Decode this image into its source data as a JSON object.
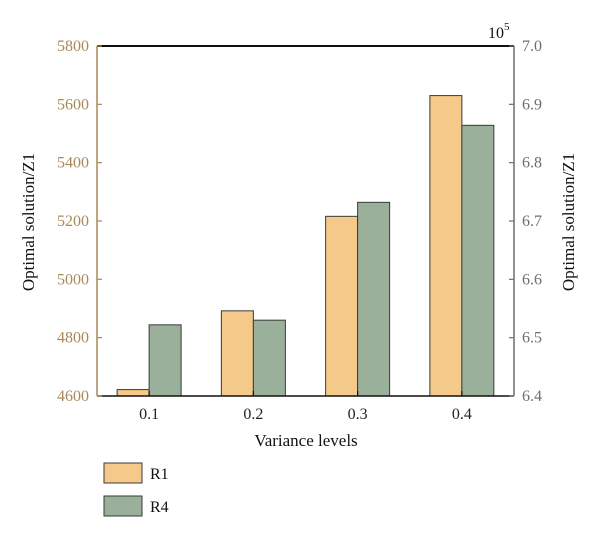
{
  "chart_data": {
    "type": "bar",
    "xlabel": "Variance levels",
    "categories": [
      "0.1",
      "0.2",
      "0.3",
      "0.4"
    ],
    "y_left": {
      "label": "Optimal solution/Z1",
      "range": [
        4600,
        5800
      ],
      "ticks": [
        "4600",
        "4800",
        "5000",
        "5200",
        "5400",
        "5600",
        "5800"
      ]
    },
    "y_right": {
      "label": "Optimal solution/Z1",
      "range": [
        6.4,
        7.0
      ],
      "ticks": [
        "6.4",
        "6.5",
        "6.6",
        "6.7",
        "6.8",
        "6.9",
        "7.0"
      ],
      "exponent_base": "10",
      "exponent_power": "5"
    },
    "series": [
      {
        "name": "R1",
        "axis": "left",
        "color": "#f5c98a",
        "values": [
          4622,
          4892,
          5216,
          5630
        ]
      },
      {
        "name": "R4",
        "axis": "right",
        "color": "#9bb09a",
        "values": [
          6.522,
          6.53,
          6.732,
          6.864
        ]
      }
    ],
    "colors": {
      "left_axis": "#a8895a",
      "right_axis": "#6e6e6e",
      "bar_edge": "#3a3a3a"
    },
    "legend_position": "bottom-left",
    "grid": false
  }
}
